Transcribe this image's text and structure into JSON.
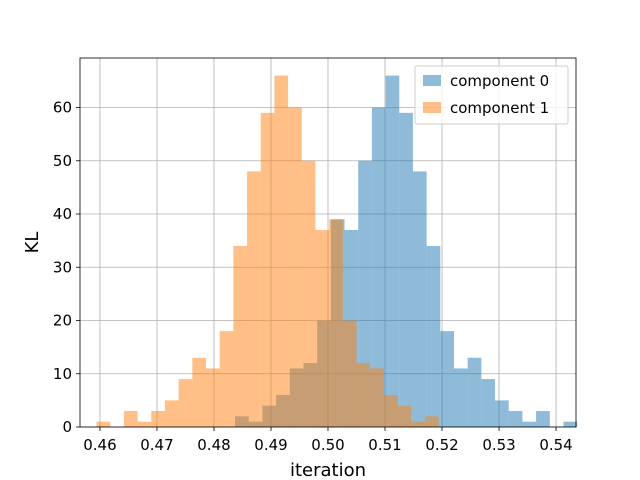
{
  "chart_data": {
    "type": "bar",
    "histogram": true,
    "xlabel": "iteration",
    "ylabel": "KL",
    "xlim": [
      0.4565,
      0.5435
    ],
    "ylim": [
      0,
      69.3
    ],
    "grid": true,
    "legend_placement": "top-right",
    "xticks": [
      0.46,
      0.47,
      0.48,
      0.49,
      0.5,
      0.51,
      0.52,
      0.53,
      0.54
    ],
    "xtick_labels": [
      "0.46",
      "0.47",
      "0.48",
      "0.49",
      "0.50",
      "0.51",
      "0.52",
      "0.53",
      "0.54"
    ],
    "yticks": [
      0,
      10,
      20,
      30,
      40,
      50,
      60
    ],
    "ytick_labels": [
      "0",
      "10",
      "20",
      "30",
      "40",
      "50",
      "60"
    ],
    "series": [
      {
        "name": "component 0",
        "color": "#1f77b4",
        "alpha": 0.5,
        "bins": [
          {
            "x0": 0.4837,
            "x1": 0.4861,
            "count": 2
          },
          {
            "x0": 0.4861,
            "x1": 0.4885,
            "count": 1
          },
          {
            "x0": 0.4885,
            "x1": 0.4909,
            "count": 4
          },
          {
            "x0": 0.4909,
            "x1": 0.4933,
            "count": 6
          },
          {
            "x0": 0.4933,
            "x1": 0.4957,
            "count": 11
          },
          {
            "x0": 0.4957,
            "x1": 0.4981,
            "count": 12
          },
          {
            "x0": 0.4981,
            "x1": 0.5005,
            "count": 20
          },
          {
            "x0": 0.5005,
            "x1": 0.5029,
            "count": 39
          },
          {
            "x0": 0.5029,
            "x1": 0.5053,
            "count": 37
          },
          {
            "x0": 0.5053,
            "x1": 0.5077,
            "count": 50
          },
          {
            "x0": 0.5077,
            "x1": 0.5101,
            "count": 60
          },
          {
            "x0": 0.5101,
            "x1": 0.5125,
            "count": 66
          },
          {
            "x0": 0.5125,
            "x1": 0.5149,
            "count": 59
          },
          {
            "x0": 0.5149,
            "x1": 0.5173,
            "count": 48
          },
          {
            "x0": 0.5173,
            "x1": 0.5197,
            "count": 34
          },
          {
            "x0": 0.5197,
            "x1": 0.5221,
            "count": 18
          },
          {
            "x0": 0.5221,
            "x1": 0.5245,
            "count": 11
          },
          {
            "x0": 0.5245,
            "x1": 0.5269,
            "count": 13
          },
          {
            "x0": 0.5269,
            "x1": 0.5293,
            "count": 9
          },
          {
            "x0": 0.5293,
            "x1": 0.5317,
            "count": 5
          },
          {
            "x0": 0.5317,
            "x1": 0.5341,
            "count": 3
          },
          {
            "x0": 0.5341,
            "x1": 0.5365,
            "count": 1
          },
          {
            "x0": 0.5365,
            "x1": 0.5389,
            "count": 3
          },
          {
            "x0": 0.5389,
            "x1": 0.5413,
            "count": 0
          },
          {
            "x0": 0.5413,
            "x1": 0.5437,
            "count": 1
          }
        ]
      },
      {
        "name": "component 1",
        "color": "#ff7f0e",
        "alpha": 0.5,
        "bins": [
          {
            "x0": 0.4594,
            "x1": 0.4618,
            "count": 1
          },
          {
            "x0": 0.4618,
            "x1": 0.4642,
            "count": 0
          },
          {
            "x0": 0.4642,
            "x1": 0.4666,
            "count": 3
          },
          {
            "x0": 0.4666,
            "x1": 0.469,
            "count": 1
          },
          {
            "x0": 0.469,
            "x1": 0.4714,
            "count": 3
          },
          {
            "x0": 0.4714,
            "x1": 0.4738,
            "count": 5
          },
          {
            "x0": 0.4738,
            "x1": 0.4762,
            "count": 9
          },
          {
            "x0": 0.4762,
            "x1": 0.4786,
            "count": 13
          },
          {
            "x0": 0.4786,
            "x1": 0.481,
            "count": 11
          },
          {
            "x0": 0.481,
            "x1": 0.4834,
            "count": 18
          },
          {
            "x0": 0.4834,
            "x1": 0.4858,
            "count": 34
          },
          {
            "x0": 0.4858,
            "x1": 0.4882,
            "count": 48
          },
          {
            "x0": 0.4882,
            "x1": 0.4906,
            "count": 59
          },
          {
            "x0": 0.4906,
            "x1": 0.493,
            "count": 66
          },
          {
            "x0": 0.493,
            "x1": 0.4954,
            "count": 60
          },
          {
            "x0": 0.4954,
            "x1": 0.4978,
            "count": 50
          },
          {
            "x0": 0.4978,
            "x1": 0.5002,
            "count": 37
          },
          {
            "x0": 0.5002,
            "x1": 0.5026,
            "count": 39
          },
          {
            "x0": 0.5026,
            "x1": 0.505,
            "count": 20
          },
          {
            "x0": 0.505,
            "x1": 0.5074,
            "count": 12
          },
          {
            "x0": 0.5074,
            "x1": 0.5098,
            "count": 11
          },
          {
            "x0": 0.5098,
            "x1": 0.5122,
            "count": 6
          },
          {
            "x0": 0.5122,
            "x1": 0.5146,
            "count": 4
          },
          {
            "x0": 0.5146,
            "x1": 0.517,
            "count": 1
          },
          {
            "x0": 0.517,
            "x1": 0.5194,
            "count": 2
          }
        ]
      }
    ]
  }
}
